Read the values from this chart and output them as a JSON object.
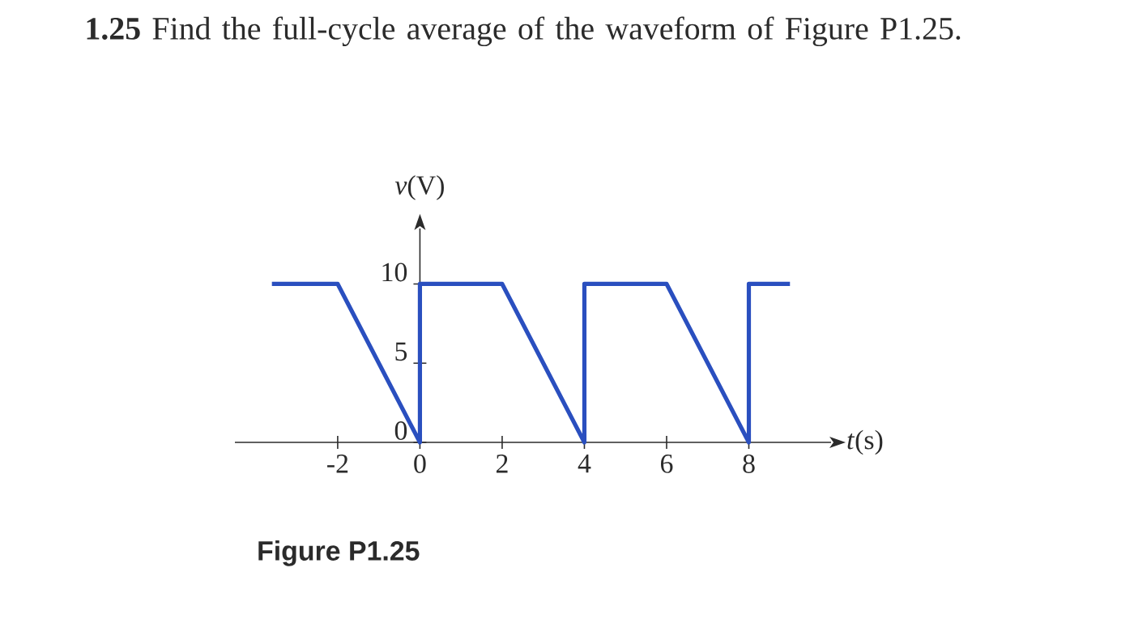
{
  "chart_data": {
    "type": "line",
    "title": "**1.25** Find the full-cycle average of the waveform of Figure P1.25.",
    "xlabel": "*t*(s)",
    "ylabel": "*v*(V)",
    "annotations": [
      "Figure P1.25"
    ],
    "x": [
      -3.6,
      -2,
      0,
      0,
      2,
      4,
      4,
      6,
      8,
      8,
      9
    ],
    "values": [
      10,
      10,
      0,
      10,
      10,
      0,
      10,
      10,
      0,
      10,
      10
    ],
    "color": "#2a4fbf",
    "xlim": [
      -4.5,
      10
    ],
    "ylim": [
      0,
      13.5
    ],
    "xticks": [
      -2,
      0,
      2,
      4,
      6,
      8
    ],
    "yticks": [
      0,
      5,
      10
    ]
  }
}
